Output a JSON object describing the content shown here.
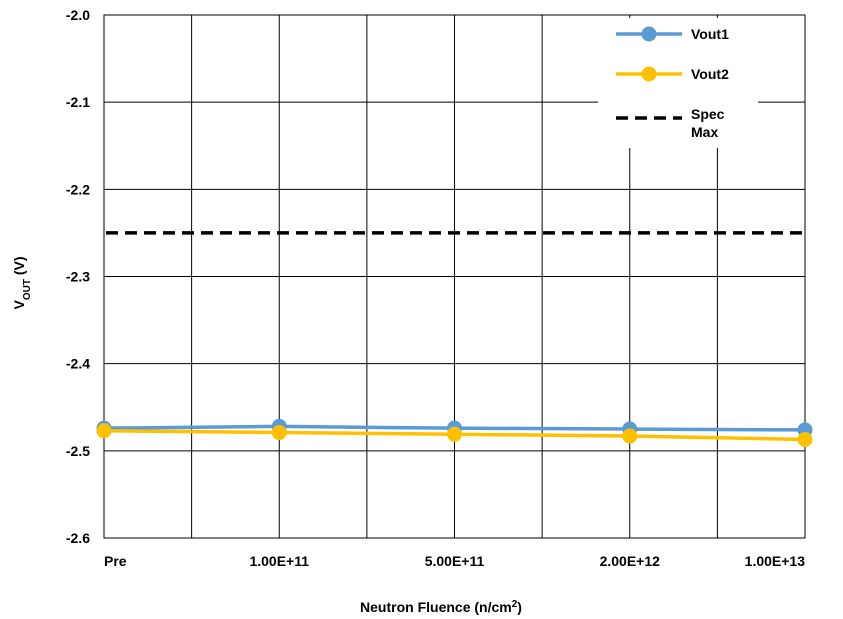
{
  "chart_data": {
    "type": "line",
    "title": "",
    "xlabel": "Neutron Fluence (n/cm2)",
    "xlabel_parts": {
      "base": "Neutron Fluence (n/cm",
      "sup": "2",
      "end": ")"
    },
    "ylabel": "VOUT (V)",
    "ylabel_parts": {
      "base": "V",
      "sub": "OUT",
      "end": " (V)"
    },
    "categories": [
      "Pre",
      "1.00E+11",
      "5.00E+11",
      "2.00E+12",
      "1.00E+13"
    ],
    "ylim": [
      -2.6,
      -2.0
    ],
    "yticks": [
      "-2.0",
      "-2.1",
      "-2.2",
      "-2.3",
      "-2.4",
      "-2.5",
      "-2.6"
    ],
    "grid": true,
    "legend_position": "top-right",
    "series": [
      {
        "name": "Vout1",
        "values": [
          -2.474,
          -2.472,
          -2.474,
          -2.475,
          -2.476
        ],
        "color": "#5B9BD5",
        "style": "line-marker"
      },
      {
        "name": "Vout2",
        "values": [
          -2.477,
          -2.479,
          -2.481,
          -2.483,
          -2.487
        ],
        "color": "#FFC000",
        "style": "line-marker"
      },
      {
        "name": "Spec Max",
        "name_lines": [
          "Spec",
          "Max"
        ],
        "values": [
          -2.25,
          -2.25,
          -2.25,
          -2.25,
          -2.25
        ],
        "color": "#000000",
        "style": "dashed"
      }
    ]
  }
}
